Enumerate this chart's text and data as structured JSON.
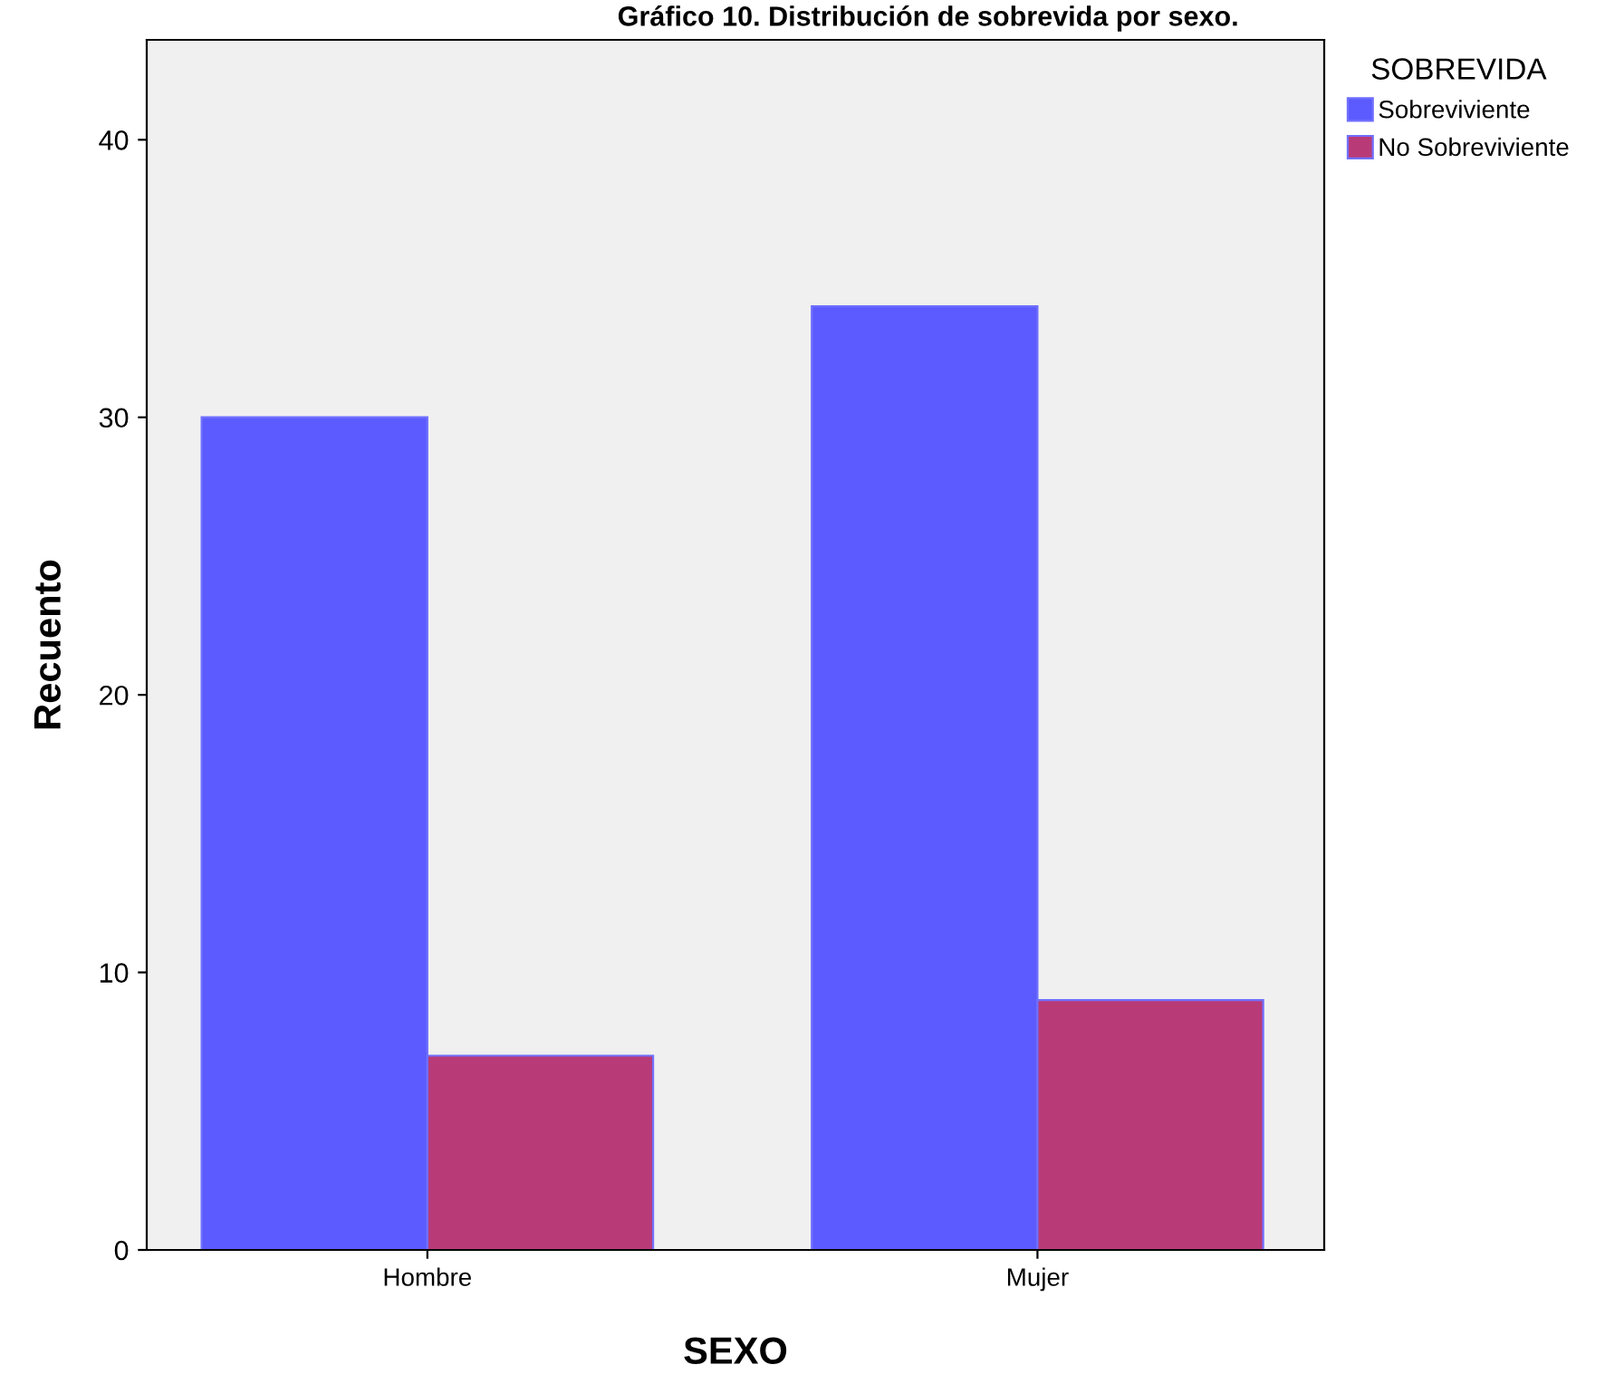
{
  "chart_data": {
    "type": "bar",
    "title": "Gráfico 10. Distribución de sobrevida por sexo.",
    "xlabel": "SEXO",
    "ylabel": "Recuento",
    "legend_title": "SOBREVIDA",
    "categories": [
      "Hombre",
      "Mujer"
    ],
    "series": [
      {
        "name": "Sobreviviente",
        "color": "#5b5bff",
        "values": [
          30,
          34
        ]
      },
      {
        "name": "No Sobreviviente",
        "color": "#b83b78",
        "values": [
          7,
          9
        ]
      }
    ],
    "ylim": [
      0,
      43.6
    ],
    "yticks": [
      0,
      10,
      20,
      30,
      40
    ],
    "grid": false,
    "legend": "right"
  }
}
